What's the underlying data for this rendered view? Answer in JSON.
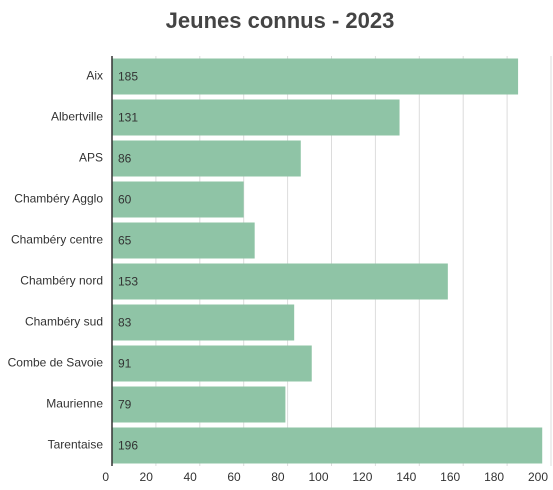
{
  "chart_data": {
    "type": "bar",
    "orientation": "horizontal",
    "title": "Jeunes connus - 2023",
    "categories": [
      "Aix",
      "Albertville",
      "APS",
      "Chambéry Agglo",
      "Chambéry centre",
      "Chambéry nord",
      "Chambéry sud",
      "Combe de Savoie",
      "Maurienne",
      "Tarentaise"
    ],
    "values": [
      185,
      131,
      86,
      60,
      65,
      153,
      83,
      91,
      79,
      196
    ],
    "color": "#8fc4a6",
    "xlim": [
      0,
      200
    ],
    "xticks": [
      0,
      20,
      40,
      60,
      80,
      100,
      120,
      140,
      160,
      180,
      200
    ],
    "grid": true
  }
}
